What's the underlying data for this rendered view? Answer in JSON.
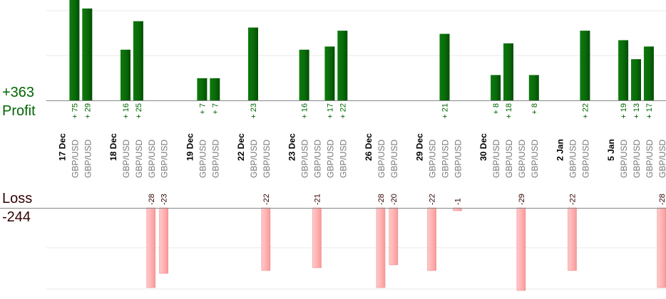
{
  "summary": {
    "profit_total": "+363",
    "profit_label": "Profit",
    "loss_label": "Loss",
    "loss_total": "-244"
  },
  "colors": {
    "profit_bar": "#0a6a0a",
    "profit_text": "#006600",
    "loss_bar": "#ffb3b3",
    "loss_text": "#330000",
    "date_text": "#000000",
    "pair_text": "#777777",
    "gridline": "#e8e8e8",
    "baseline": "#888888"
  },
  "chart_data": {
    "type": "bar",
    "series": [
      {
        "name": "Profit"
      },
      {
        "name": "Loss"
      }
    ],
    "columns": [
      {
        "date": "17 Dec"
      },
      {
        "pair": "GBP/USD",
        "profit": 75
      },
      {
        "pair": "GBP/USD",
        "profit": 29
      },
      {},
      {
        "date": "18 Dec"
      },
      {
        "pair": "GBP/USD",
        "profit": 16
      },
      {
        "pair": "GBP/USD",
        "profit": 25
      },
      {
        "pair": "GBP/USD",
        "loss": -28
      },
      {
        "pair": "GBP/USD",
        "loss": -23
      },
      {},
      {
        "date": "19 Dec"
      },
      {
        "pair": "GBP/USD",
        "profit": 7
      },
      {
        "pair": "GBP/USD",
        "profit": 7
      },
      {},
      {
        "date": "22 Dec"
      },
      {
        "pair": "GBP/USD",
        "profit": 23
      },
      {
        "pair": "GBP/USD",
        "loss": -22
      },
      {},
      {
        "date": "23 Dec"
      },
      {
        "pair": "GBP/USD",
        "profit": 16
      },
      {
        "pair": "GBP/USD",
        "loss": -21
      },
      {
        "pair": "GBP/USD",
        "profit": 17
      },
      {
        "pair": "GBP/USD",
        "profit": 22
      },
      {},
      {
        "date": "26 Dec"
      },
      {
        "pair": "GBP/USD",
        "loss": -28
      },
      {
        "pair": "GBP/USD",
        "loss": -20
      },
      {},
      {
        "date": "29 Dec"
      },
      {
        "pair": "GBP/USD",
        "loss": -22
      },
      {
        "pair": "GBP/USD",
        "profit": 21
      },
      {
        "pair": "GBP/USD",
        "loss": -1
      },
      {},
      {
        "date": "30 Dec"
      },
      {
        "pair": "GBP/USD",
        "profit": 8
      },
      {
        "pair": "GBP/USD",
        "profit": 18
      },
      {
        "pair": "GBP/USD",
        "loss": -29
      },
      {
        "pair": "GBP/USD",
        "profit": 8
      },
      {},
      {
        "date": "2 Jan"
      },
      {
        "pair": "GBP/USD",
        "loss": -22
      },
      {
        "pair": "GBP/USD",
        "profit": 22
      },
      {},
      {
        "date": "5 Jan"
      },
      {
        "pair": "GBP/USD",
        "profit": 19
      },
      {
        "pair": "GBP/USD",
        "profit": 13
      },
      {
        "pair": "GBP/USD",
        "profit": 17
      },
      {
        "pair": "GBP/USD",
        "loss": -28
      }
    ]
  }
}
